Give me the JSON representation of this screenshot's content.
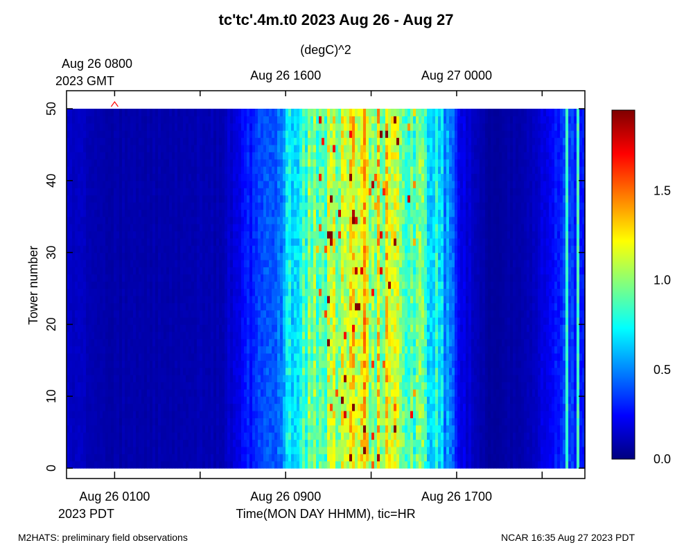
{
  "chart_data": {
    "type": "heatmap",
    "title": "tc'tc'.4m.t0 2023 Aug 26 - Aug 27",
    "units": "(degC)^2",
    "ylabel": "Tower number",
    "xlabel": "Time(MON DAY HHMM), tic=HR",
    "ylim": [
      0,
      50
    ],
    "y_ticks": [
      "0",
      "10",
      "20",
      "30",
      "40",
      "50"
    ],
    "x_hours_pdt": [
      -1.25,
      23.0
    ],
    "top_axis_labels": [
      {
        "line1": "Aug 26 0800",
        "line2": "2023 GMT"
      },
      {
        "line1": "Aug 26 1600",
        "line2": ""
      },
      {
        "line1": "Aug 27 0000",
        "line2": ""
      }
    ],
    "bottom_axis_labels": [
      {
        "line1": "Aug 26 0100",
        "line2": "2023 PDT"
      },
      {
        "line1": "Aug 26 0900",
        "line2": ""
      },
      {
        "line1": "Aug 26 1700",
        "line2": ""
      }
    ],
    "major_ticks_pdt_hour": [
      1,
      5,
      9,
      13,
      17,
      21
    ],
    "colorbar": {
      "range": [
        0.0,
        1.95
      ],
      "tick_labels": [
        "0.0",
        "0.5",
        "1.0",
        "1.5"
      ],
      "colors": [
        "#00007f",
        "#0000ff",
        "#0080ff",
        "#00ffff",
        "#80ff80",
        "#ffff00",
        "#ff8000",
        "#ff0000",
        "#7f0000"
      ]
    },
    "field_profile": [
      {
        "hour": -1.25,
        "value": 0.15
      },
      {
        "hour": 0.5,
        "value": 0.08
      },
      {
        "hour": 6.0,
        "value": 0.1
      },
      {
        "hour": 8.5,
        "value": 0.45
      },
      {
        "hour": 9.5,
        "value": 0.8
      },
      {
        "hour": 12.5,
        "value": 1.15
      },
      {
        "hour": 14.0,
        "value": 1.1
      },
      {
        "hour": 16.0,
        "value": 0.75
      },
      {
        "hour": 17.3,
        "value": 0.2
      },
      {
        "hour": 18.5,
        "value": 0.05
      },
      {
        "hour": 20.5,
        "value": 0.1
      },
      {
        "hour": 22.0,
        "value": 0.35
      },
      {
        "hour": 23.0,
        "value": 0.3
      }
    ],
    "marker": {
      "symbol": "^",
      "hour": 1.0,
      "y": 50,
      "color": "#ff0000"
    }
  },
  "footer": {
    "left": "M2HATS: preliminary field observations",
    "right": "NCAR 16:35 Aug 27 2023 PDT"
  }
}
